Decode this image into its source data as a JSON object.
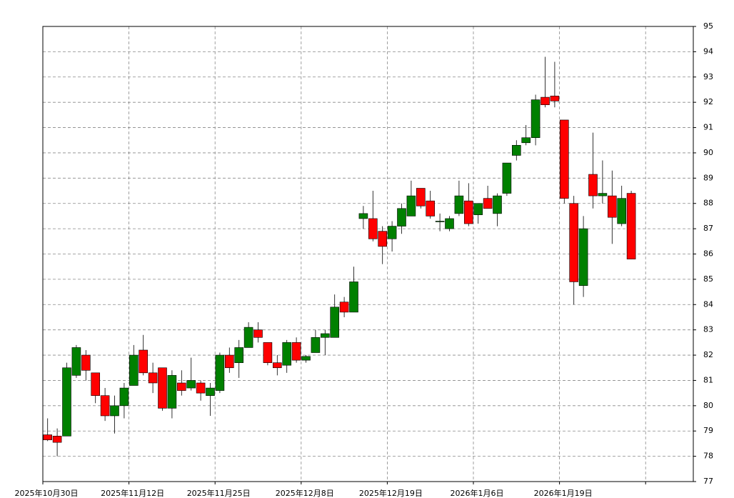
{
  "chart_data": {
    "type": "candlestick",
    "categories": [
      "2025年10月30日",
      null,
      null,
      null,
      null,
      null,
      null,
      null,
      null,
      "2025年11月12日",
      null,
      null,
      null,
      null,
      null,
      null,
      null,
      null,
      "2025年11月25日",
      null,
      null,
      null,
      null,
      null,
      null,
      null,
      null,
      "2025年12月8日",
      null,
      null,
      null,
      null,
      null,
      null,
      null,
      null,
      "2025年12月19日",
      null,
      null,
      null,
      null,
      null,
      null,
      null,
      null,
      "2026年1月6日",
      null,
      null,
      null,
      null,
      null,
      null,
      null,
      null,
      "2026年1月19日",
      null,
      null,
      null,
      null,
      null,
      null,
      null
    ],
    "open": [
      78.85,
      78.8,
      78.8,
      81.2,
      82.0,
      81.3,
      80.4,
      79.6,
      80.0,
      80.8,
      82.2,
      81.3,
      81.5,
      79.9,
      80.9,
      80.7,
      80.9,
      80.4,
      80.6,
      82.0,
      81.7,
      82.3,
      83.0,
      82.5,
      81.7,
      81.6,
      82.5,
      81.8,
      82.1,
      82.7,
      82.7,
      84.1,
      83.7,
      87.4,
      87.4,
      86.9,
      86.6,
      87.1,
      87.5,
      88.6,
      88.1,
      87.28,
      87.0,
      87.6,
      88.1,
      87.55,
      88.2,
      87.6,
      88.4,
      89.9,
      90.4,
      90.6,
      92.2,
      92.25,
      91.3,
      88.0,
      84.75,
      89.15,
      88.3,
      88.3,
      87.2,
      88.4
    ],
    "high": [
      79.5,
      79.1,
      81.7,
      82.4,
      82.2,
      81.3,
      80.7,
      80.4,
      80.9,
      82.4,
      82.8,
      81.7,
      81.5,
      81.4,
      81.4,
      81.9,
      81.0,
      80.9,
      82.1,
      82.3,
      82.6,
      83.3,
      83.3,
      82.5,
      82.0,
      82.6,
      82.7,
      82.0,
      83.0,
      83.0,
      84.4,
      84.3,
      85.5,
      87.9,
      88.5,
      87.1,
      87.3,
      88.0,
      88.9,
      88.6,
      88.5,
      87.6,
      87.5,
      88.9,
      88.8,
      88.0,
      88.7,
      88.4,
      89.6,
      90.5,
      91.1,
      92.3,
      93.8,
      93.6,
      91.3,
      88.3,
      87.5,
      90.8,
      89.7,
      89.3,
      88.7,
      88.5
    ],
    "low": [
      78.6,
      78.0,
      78.8,
      81.1,
      81.0,
      80.1,
      79.4,
      78.9,
      79.5,
      80.8,
      81.2,
      80.5,
      79.8,
      79.5,
      80.4,
      80.6,
      80.2,
      79.6,
      80.5,
      81.3,
      81.1,
      82.3,
      82.5,
      81.6,
      81.2,
      81.3,
      81.7,
      81.7,
      82.1,
      82.0,
      82.7,
      83.5,
      83.7,
      87.0,
      86.5,
      85.6,
      86.1,
      86.8,
      87.5,
      87.8,
      87.4,
      86.9,
      86.9,
      87.5,
      87.1,
      87.2,
      87.8,
      87.1,
      88.3,
      89.7,
      90.3,
      90.3,
      91.8,
      91.8,
      88.0,
      84.0,
      84.3,
      87.8,
      88.0,
      86.4,
      87.1,
      85.8
    ],
    "close": [
      78.65,
      78.55,
      81.5,
      82.3,
      81.4,
      80.4,
      79.6,
      80.0,
      80.7,
      82.0,
      81.3,
      80.9,
      79.9,
      81.2,
      80.6,
      81.0,
      80.5,
      80.7,
      82.0,
      81.5,
      82.3,
      83.1,
      82.7,
      81.7,
      81.5,
      82.5,
      81.8,
      81.95,
      82.7,
      82.85,
      83.9,
      83.7,
      84.9,
      87.6,
      86.6,
      86.3,
      87.1,
      87.8,
      88.3,
      87.9,
      87.5,
      87.3,
      87.4,
      88.3,
      87.2,
      88.0,
      87.8,
      88.3,
      89.6,
      90.3,
      90.6,
      92.1,
      91.9,
      92.05,
      88.2,
      84.9,
      87.0,
      88.3,
      88.4,
      87.45,
      88.2,
      85.8
    ],
    "up_color": "#008000",
    "down_color": "#ff0000",
    "ylim": [
      77,
      95
    ],
    "yticks": [
      77,
      78,
      79,
      80,
      81,
      82,
      83,
      84,
      85,
      86,
      87,
      88,
      89,
      90,
      91,
      92,
      93,
      94,
      95
    ],
    "grid": true
  }
}
